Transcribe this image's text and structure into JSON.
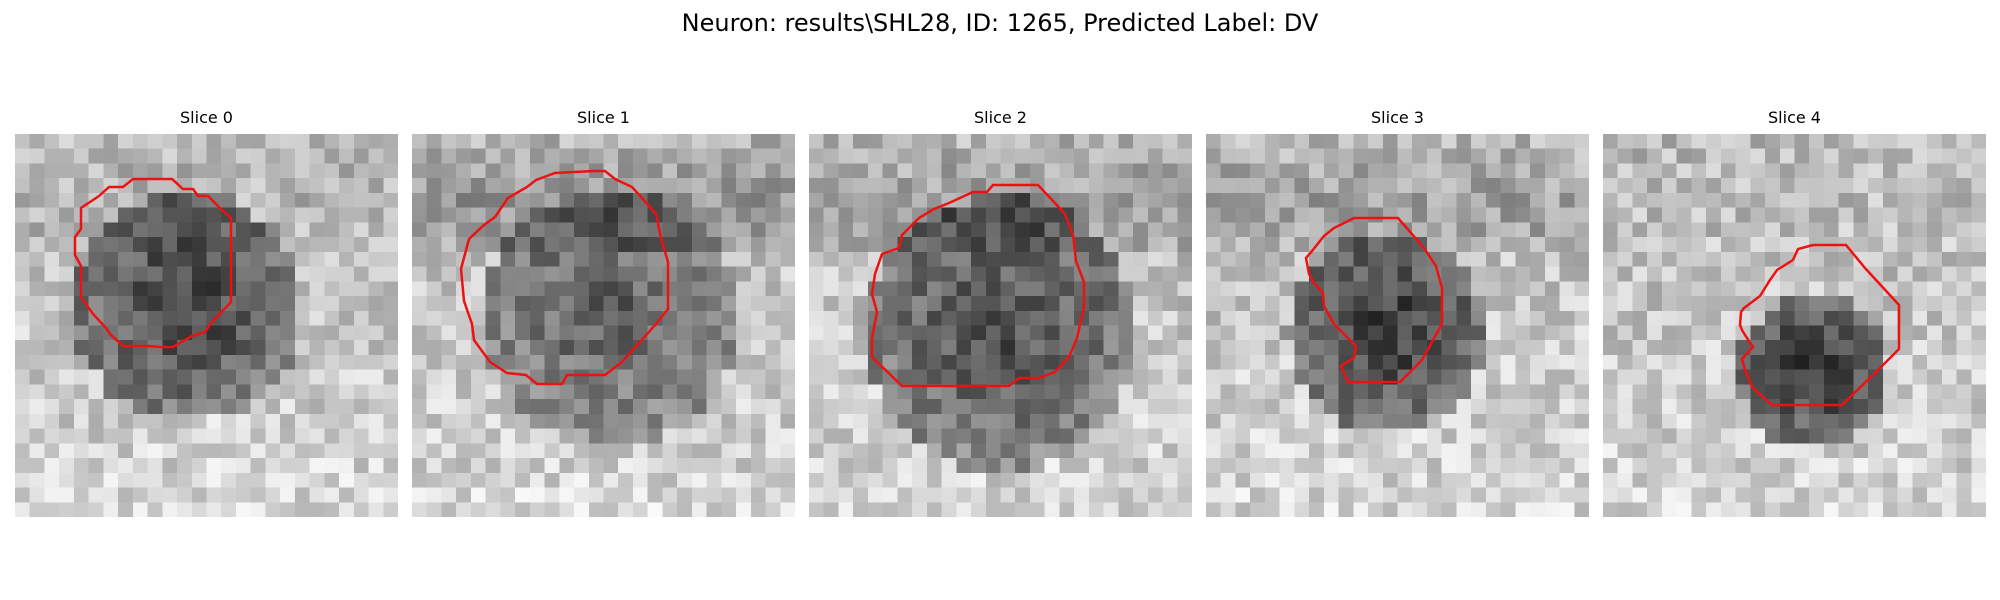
{
  "title": "Neuron: results\\SHL28, ID: 1265, Predicted Label: DV",
  "contour_color": "#ee1111",
  "slices": [
    {
      "title": "Slice 0"
    },
    {
      "title": "Slice 1"
    },
    {
      "title": "Slice 2"
    },
    {
      "title": "Slice 3"
    },
    {
      "title": "Slice 4"
    }
  ]
}
